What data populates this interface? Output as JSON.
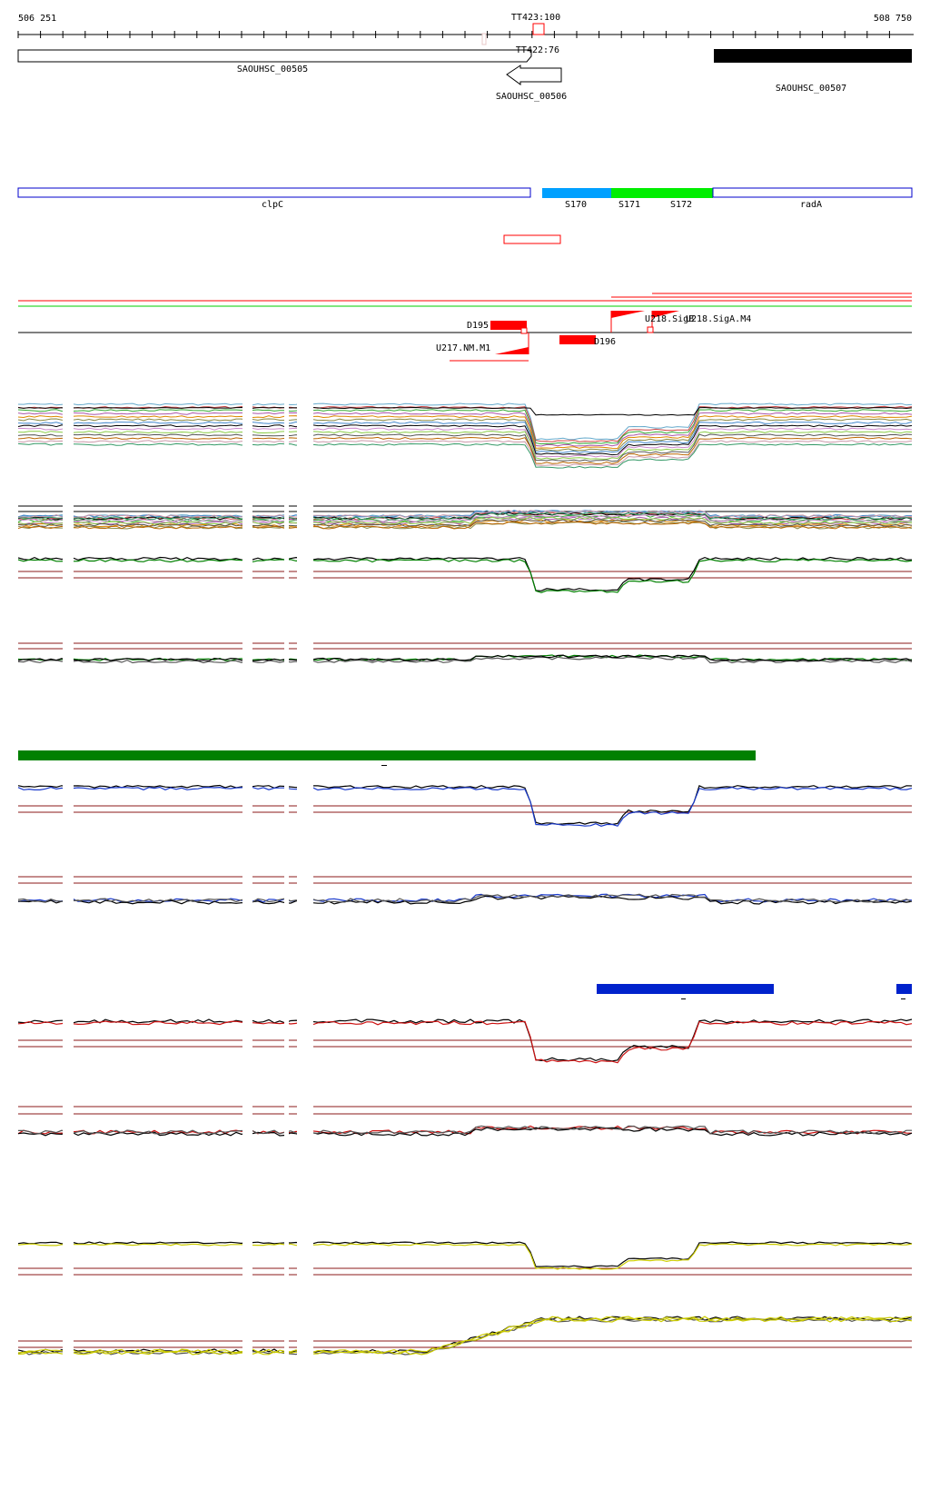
{
  "ruler": {
    "start_label": "506 251",
    "end_label": "508 750",
    "terminator_top": "TT423:100",
    "terminator_mid": "TT422:76"
  },
  "genes": {
    "gene_a": "SAOUHSC_00505",
    "gene_b": "SAOUHSC_00506",
    "gene_c": "SAOUHSC_00507"
  },
  "segments": {
    "left": "clpC",
    "s170": "S170",
    "s171": "S171",
    "s172": "S172",
    "right": "radA"
  },
  "features": {
    "d195": "D195",
    "d196": "D196",
    "u217": "U217.NM.M1",
    "u218a": "U218.SigB",
    "u218b": "U218.SigA.M4"
  },
  "colors": {
    "gene_outline": "#000000",
    "gene_filled": "#000000",
    "segment_outline": "#0000cc",
    "s170": "#00a0ff",
    "s171_s172": "#00ee00",
    "feature_red": "#ff0000",
    "bar_green": "#008000",
    "bar_blue": "#0022cc",
    "threshold": "#8b1a1a",
    "profile_green": "#008000",
    "profile_blue": "#1a3acc",
    "profile_red": "#cc1111",
    "profile_yellow": "#cccc00"
  }
}
